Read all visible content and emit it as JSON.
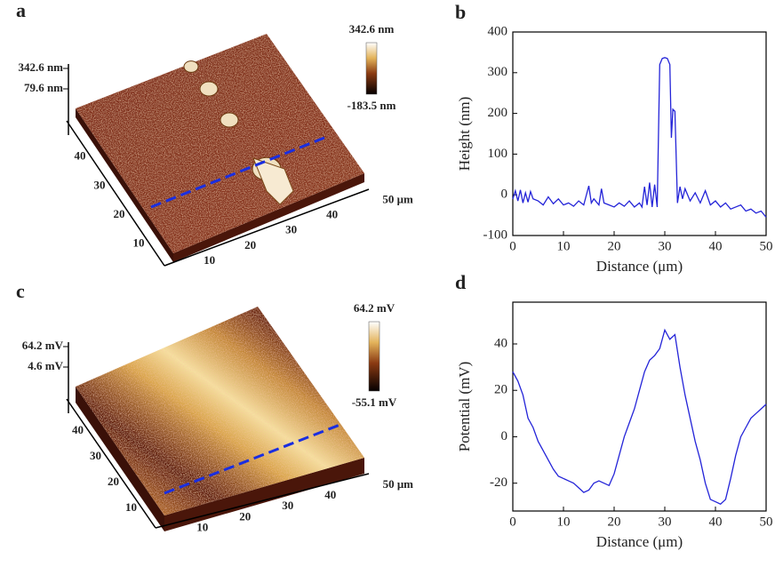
{
  "panels": [
    {
      "label": "a",
      "z_labels": [
        "342.6 nm",
        "79.6 nm"
      ],
      "colorbar": [
        "342.6 nm",
        "-183.5 nm"
      ],
      "y_ticks": [
        "40",
        "30",
        "20",
        "10"
      ],
      "x_ticks": [
        "10",
        "20",
        "30",
        "40",
        "50 μm"
      ]
    },
    {
      "label": "c",
      "z_labels": [
        "64.2 mV",
        "4.6 mV"
      ],
      "colorbar": [
        "64.2 mV",
        "-55.1 mV"
      ],
      "y_ticks": [
        "40",
        "30",
        "20",
        "10"
      ],
      "x_ticks": [
        "10",
        "20",
        "30",
        "40",
        "50 μm"
      ]
    }
  ],
  "chart_data": [
    {
      "type": "line",
      "panel_label": "b",
      "xlabel": "Distance (μm)",
      "ylabel": "Height (nm)",
      "x": [
        0,
        0.5,
        1,
        1.5,
        2,
        2.5,
        3,
        3.5,
        4,
        5,
        6,
        7,
        8,
        9,
        10,
        11,
        12,
        13,
        14,
        15,
        15.5,
        16,
        17,
        17.5,
        18,
        19,
        20,
        21,
        22,
        23,
        24,
        25,
        25.5,
        26,
        26.5,
        27,
        27.5,
        28,
        28.5,
        29,
        29.5,
        30,
        30.5,
        31,
        31.3,
        31.6,
        32,
        32.5,
        33,
        33.5,
        34,
        35,
        36,
        37,
        38,
        39,
        40,
        41,
        42,
        43,
        44,
        45,
        46,
        47,
        48,
        49,
        50
      ],
      "series": [
        {
          "color": "#2424d8",
          "values": [
            -10,
            10,
            -15,
            12,
            -20,
            5,
            -18,
            8,
            -10,
            -15,
            -25,
            -5,
            -22,
            -10,
            -25,
            -20,
            -28,
            -15,
            -25,
            22,
            -20,
            -10,
            -25,
            15,
            -20,
            -25,
            -30,
            -20,
            -28,
            -15,
            -30,
            -20,
            -30,
            20,
            -25,
            30,
            -30,
            25,
            -30,
            320,
            335,
            337,
            335,
            320,
            140,
            210,
            205,
            -20,
            20,
            -10,
            15,
            -15,
            5,
            -20,
            10,
            -25,
            -15,
            -30,
            -20,
            -35,
            -30,
            -25,
            -40,
            -35,
            -45,
            -40,
            -55
          ]
        }
      ],
      "xlim": [
        0,
        50
      ],
      "xticks": [
        0,
        10,
        20,
        30,
        40,
        50
      ],
      "ylim": [
        -100,
        400
      ],
      "yticks": [
        -100,
        0,
        100,
        200,
        300,
        400
      ],
      "grid": false
    },
    {
      "type": "line",
      "panel_label": "d",
      "xlabel": "Distance (μm)",
      "ylabel": "Potential (mV)",
      "x": [
        0,
        1,
        2,
        3,
        4,
        5,
        6,
        7,
        8,
        9,
        10,
        11,
        12,
        13,
        14,
        15,
        16,
        17,
        18,
        19,
        20,
        21,
        22,
        23,
        24,
        25,
        26,
        27,
        28,
        29,
        30,
        31,
        32,
        33,
        34,
        35,
        36,
        37,
        38,
        39,
        40,
        41,
        42,
        43,
        44,
        45,
        46,
        47,
        48,
        49,
        50
      ],
      "series": [
        {
          "color": "#2424d8",
          "values": [
            28,
            24,
            18,
            8,
            4,
            -2,
            -6,
            -10,
            -14,
            -17,
            -18,
            -19,
            -20,
            -22,
            -24,
            -23,
            -20,
            -19,
            -20,
            -21,
            -16,
            -8,
            0,
            6,
            12,
            20,
            28,
            33,
            35,
            38,
            46,
            42,
            44,
            30,
            18,
            8,
            -2,
            -10,
            -20,
            -27,
            -28,
            -29,
            -27,
            -18,
            -8,
            0,
            4,
            8,
            10,
            12,
            14
          ]
        }
      ],
      "xlim": [
        0,
        50
      ],
      "xticks": [
        0,
        10,
        20,
        30,
        40,
        50
      ],
      "ylim": [
        -32,
        58
      ],
      "yticks": [
        -20,
        0,
        20,
        40
      ],
      "grid": false
    }
  ]
}
